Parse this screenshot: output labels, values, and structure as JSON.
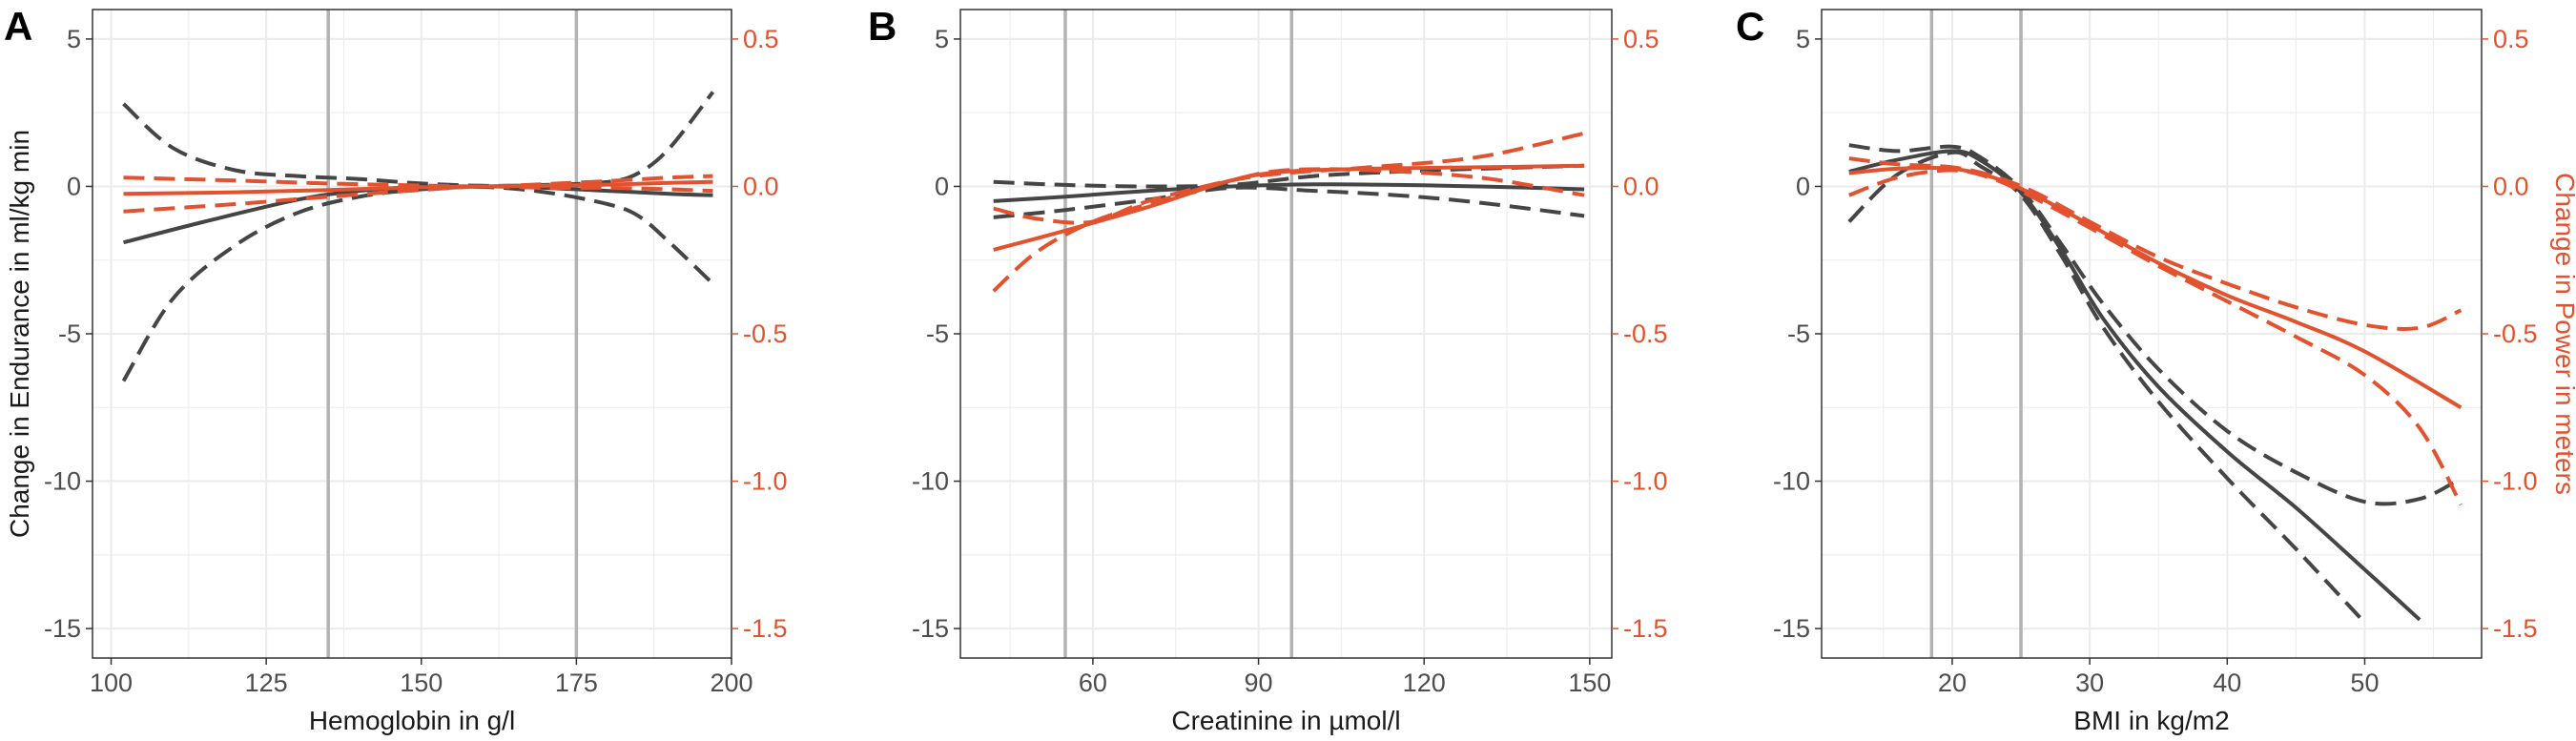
{
  "colors": {
    "endurance": "#454545",
    "power": "#e2522f",
    "grid": "#ebebeb",
    "reference_line": "#b3b3b3",
    "panel_border": "#333333"
  },
  "chart_data": [
    {
      "type": "line",
      "panel_label": "A",
      "xlabel": "Hemoglobin in g/l",
      "ylabel_left": "Change in Endurance in ml/kg min",
      "ylabel_right": "",
      "xlim": [
        97,
        200
      ],
      "ylim_left": [
        -16,
        6
      ],
      "ylim_right": [
        -1.6,
        0.6
      ],
      "xticks": [
        100,
        125,
        150,
        175,
        200
      ],
      "xtick_labels": [
        "100",
        "125",
        "150",
        "175",
        "200"
      ],
      "yticks_left": [
        5,
        0,
        -5,
        -10,
        -15
      ],
      "ytick_labels_left": [
        "5",
        "0",
        "-5",
        "-10",
        "-15"
      ],
      "yticks_right": [
        0.5,
        0.0,
        -0.5,
        -1.0,
        -1.5
      ],
      "ytick_labels_right": [
        "0.5",
        "0.0",
        "-0.5",
        "-1.0",
        "-1.5"
      ],
      "reference_lines_x": [
        135,
        175
      ],
      "grid": true,
      "series": [
        {
          "axis": "left",
          "color": "#454545",
          "style": "solid",
          "x": [
            102,
            115,
            130,
            140,
            150,
            160,
            170,
            180,
            190,
            197
          ],
          "y": [
            -1.9,
            -1.2,
            -0.45,
            -0.15,
            -0.02,
            0.0,
            -0.05,
            -0.15,
            -0.25,
            -0.3
          ]
        },
        {
          "axis": "left",
          "color": "#454545",
          "style": "dashed",
          "x": [
            102,
            110,
            120,
            130,
            140,
            150,
            160,
            170,
            180,
            185,
            190,
            197
          ],
          "y": [
            2.8,
            1.3,
            0.55,
            0.35,
            0.25,
            0.1,
            0.02,
            0.05,
            0.15,
            0.45,
            1.3,
            3.2
          ]
        },
        {
          "axis": "left",
          "color": "#454545",
          "style": "dashed",
          "x": [
            102,
            110,
            120,
            130,
            140,
            150,
            160,
            170,
            180,
            185,
            190,
            197
          ],
          "y": [
            -6.6,
            -3.8,
            -2.0,
            -0.9,
            -0.35,
            -0.1,
            -0.02,
            -0.2,
            -0.6,
            -1.0,
            -1.9,
            -3.3
          ]
        },
        {
          "axis": "right",
          "color": "#e2522f",
          "style": "solid",
          "x": [
            102,
            120,
            135,
            150,
            160,
            170,
            180,
            190,
            197
          ],
          "y": [
            -0.025,
            -0.02,
            -0.012,
            -0.003,
            0.0,
            0.002,
            0.006,
            0.012,
            0.015
          ]
        },
        {
          "axis": "right",
          "color": "#e2522f",
          "style": "dashed",
          "x": [
            102,
            120,
            135,
            150,
            160,
            170,
            180,
            190,
            197
          ],
          "y": [
            0.03,
            0.02,
            0.01,
            0.003,
            0.0,
            0.008,
            0.018,
            0.03,
            0.035
          ]
        },
        {
          "axis": "right",
          "color": "#e2522f",
          "style": "dashed",
          "x": [
            102,
            120,
            135,
            150,
            160,
            170,
            180,
            190,
            197
          ],
          "y": [
            -0.085,
            -0.06,
            -0.035,
            -0.012,
            0.0,
            -0.005,
            -0.005,
            -0.01,
            -0.015
          ]
        }
      ]
    },
    {
      "type": "line",
      "panel_label": "B",
      "xlabel": "Creatinine in µmol/l",
      "ylabel_left": "",
      "ylabel_right": "",
      "xlim": [
        36,
        154
      ],
      "ylim_left": [
        -16,
        6
      ],
      "ylim_right": [
        -1.6,
        0.6
      ],
      "xticks": [
        60,
        90,
        120,
        150
      ],
      "xtick_labels": [
        "60",
        "90",
        "120",
        "150"
      ],
      "yticks_left": [
        5,
        0,
        -5,
        -10,
        -15
      ],
      "ytick_labels_left": [
        "5",
        "0",
        "-5",
        "-10",
        "-15"
      ],
      "yticks_right": [
        0.5,
        0.0,
        -0.5,
        -1.0,
        -1.5
      ],
      "ytick_labels_right": [
        "0.5",
        "0.0",
        "-0.5",
        "-1.0",
        "-1.5"
      ],
      "reference_lines_x": [
        55,
        96
      ],
      "grid": true,
      "series": [
        {
          "axis": "left",
          "color": "#454545",
          "style": "solid",
          "x": [
            42,
            55,
            70,
            85,
            100,
            115,
            130,
            149
          ],
          "y": [
            -0.5,
            -0.35,
            -0.15,
            0.0,
            0.07,
            0.05,
            0.0,
            -0.1
          ]
        },
        {
          "axis": "left",
          "color": "#454545",
          "style": "dashed",
          "x": [
            42,
            55,
            70,
            85,
            100,
            115,
            130,
            149
          ],
          "y": [
            0.15,
            0.05,
            0.0,
            0.05,
            0.35,
            0.5,
            0.6,
            0.7
          ]
        },
        {
          "axis": "left",
          "color": "#454545",
          "style": "dashed",
          "x": [
            42,
            55,
            70,
            85,
            100,
            115,
            130,
            149
          ],
          "y": [
            -1.05,
            -0.8,
            -0.45,
            -0.05,
            -0.15,
            -0.3,
            -0.55,
            -1.0
          ]
        },
        {
          "axis": "right",
          "color": "#e2522f",
          "style": "solid",
          "x": [
            42,
            55,
            70,
            85,
            95,
            110,
            130,
            149
          ],
          "y": [
            -0.215,
            -0.15,
            -0.07,
            0.02,
            0.05,
            0.06,
            0.065,
            0.07
          ]
        },
        {
          "axis": "right",
          "color": "#e2522f",
          "style": "dashed",
          "x": [
            42,
            50,
            60,
            70,
            85,
            95,
            110,
            130,
            149
          ],
          "y": [
            -0.075,
            -0.11,
            -0.12,
            -0.05,
            0.02,
            0.045,
            0.065,
            0.1,
            0.18
          ]
        },
        {
          "axis": "right",
          "color": "#e2522f",
          "style": "dashed",
          "x": [
            42,
            50,
            60,
            70,
            85,
            95,
            110,
            130,
            149
          ],
          "y": [
            -0.355,
            -0.22,
            -0.12,
            -0.06,
            0.02,
            0.055,
            0.055,
            0.03,
            -0.03
          ]
        }
      ]
    },
    {
      "type": "line",
      "panel_label": "C",
      "xlabel": "BMI in kg/m2",
      "ylabel_left": "",
      "ylabel_right": "Change in Power in meters",
      "xlim": [
        10.5,
        58.5
      ],
      "ylim_left": [
        -16,
        6
      ],
      "ylim_right": [
        -1.6,
        0.6
      ],
      "xticks": [
        20,
        30,
        40,
        50
      ],
      "xtick_labels": [
        "20",
        "30",
        "40",
        "50"
      ],
      "yticks_left": [
        5,
        0,
        -5,
        -10,
        -15
      ],
      "ytick_labels_left": [
        "5",
        "0",
        "-5",
        "-10",
        "-15"
      ],
      "yticks_right": [
        0.5,
        0.0,
        -0.5,
        -1.0,
        -1.5
      ],
      "ytick_labels_right": [
        "0.5",
        "0.0",
        "-0.5",
        "-1.0",
        "-1.5"
      ],
      "reference_lines_x": [
        18.5,
        25
      ],
      "grid": true,
      "series": [
        {
          "axis": "left",
          "color": "#454545",
          "style": "solid",
          "x": [
            12.5,
            16,
            20,
            22,
            25,
            28,
            31,
            35,
            40,
            45,
            50,
            54
          ],
          "y": [
            0.5,
            0.9,
            1.2,
            0.9,
            -0.2,
            -2.2,
            -4.5,
            -6.8,
            -9.0,
            -10.9,
            -13.0,
            -14.7
          ]
        },
        {
          "axis": "left",
          "color": "#454545",
          "style": "dashed",
          "x": [
            12.5,
            16,
            20,
            22,
            25,
            28,
            31,
            35,
            40,
            45,
            50,
            54,
            57
          ],
          "y": [
            1.4,
            1.2,
            1.35,
            1.0,
            -0.1,
            -2.0,
            -4.0,
            -6.2,
            -8.3,
            -9.7,
            -10.7,
            -10.6,
            -9.9
          ]
        },
        {
          "axis": "left",
          "color": "#454545",
          "style": "dashed",
          "x": [
            12.5,
            16,
            20,
            22,
            25,
            28,
            31,
            35,
            40,
            45,
            50
          ],
          "y": [
            -1.2,
            0.4,
            1.15,
            0.7,
            -0.3,
            -2.4,
            -4.8,
            -7.3,
            -9.9,
            -12.3,
            -14.8
          ]
        },
        {
          "axis": "right",
          "color": "#e2522f",
          "style": "solid",
          "x": [
            12.5,
            16,
            20,
            23,
            26,
            30,
            35,
            40,
            45,
            50,
            57
          ],
          "y": [
            0.045,
            0.06,
            0.06,
            0.03,
            -0.03,
            -0.13,
            -0.26,
            -0.37,
            -0.46,
            -0.56,
            -0.75
          ]
        },
        {
          "axis": "right",
          "color": "#e2522f",
          "style": "dashed",
          "x": [
            12.5,
            16,
            20,
            23,
            26,
            30,
            35,
            40,
            45,
            50,
            54,
            57
          ],
          "y": [
            0.095,
            0.075,
            0.065,
            0.035,
            -0.02,
            -0.12,
            -0.24,
            -0.33,
            -0.41,
            -0.47,
            -0.48,
            -0.42
          ]
        },
        {
          "axis": "right",
          "color": "#e2522f",
          "style": "dashed",
          "x": [
            12.5,
            16,
            20,
            23,
            26,
            30,
            35,
            40,
            45,
            50,
            54,
            57
          ],
          "y": [
            -0.03,
            0.03,
            0.055,
            0.025,
            -0.04,
            -0.14,
            -0.27,
            -0.39,
            -0.51,
            -0.64,
            -0.82,
            -1.08
          ]
        }
      ]
    }
  ]
}
